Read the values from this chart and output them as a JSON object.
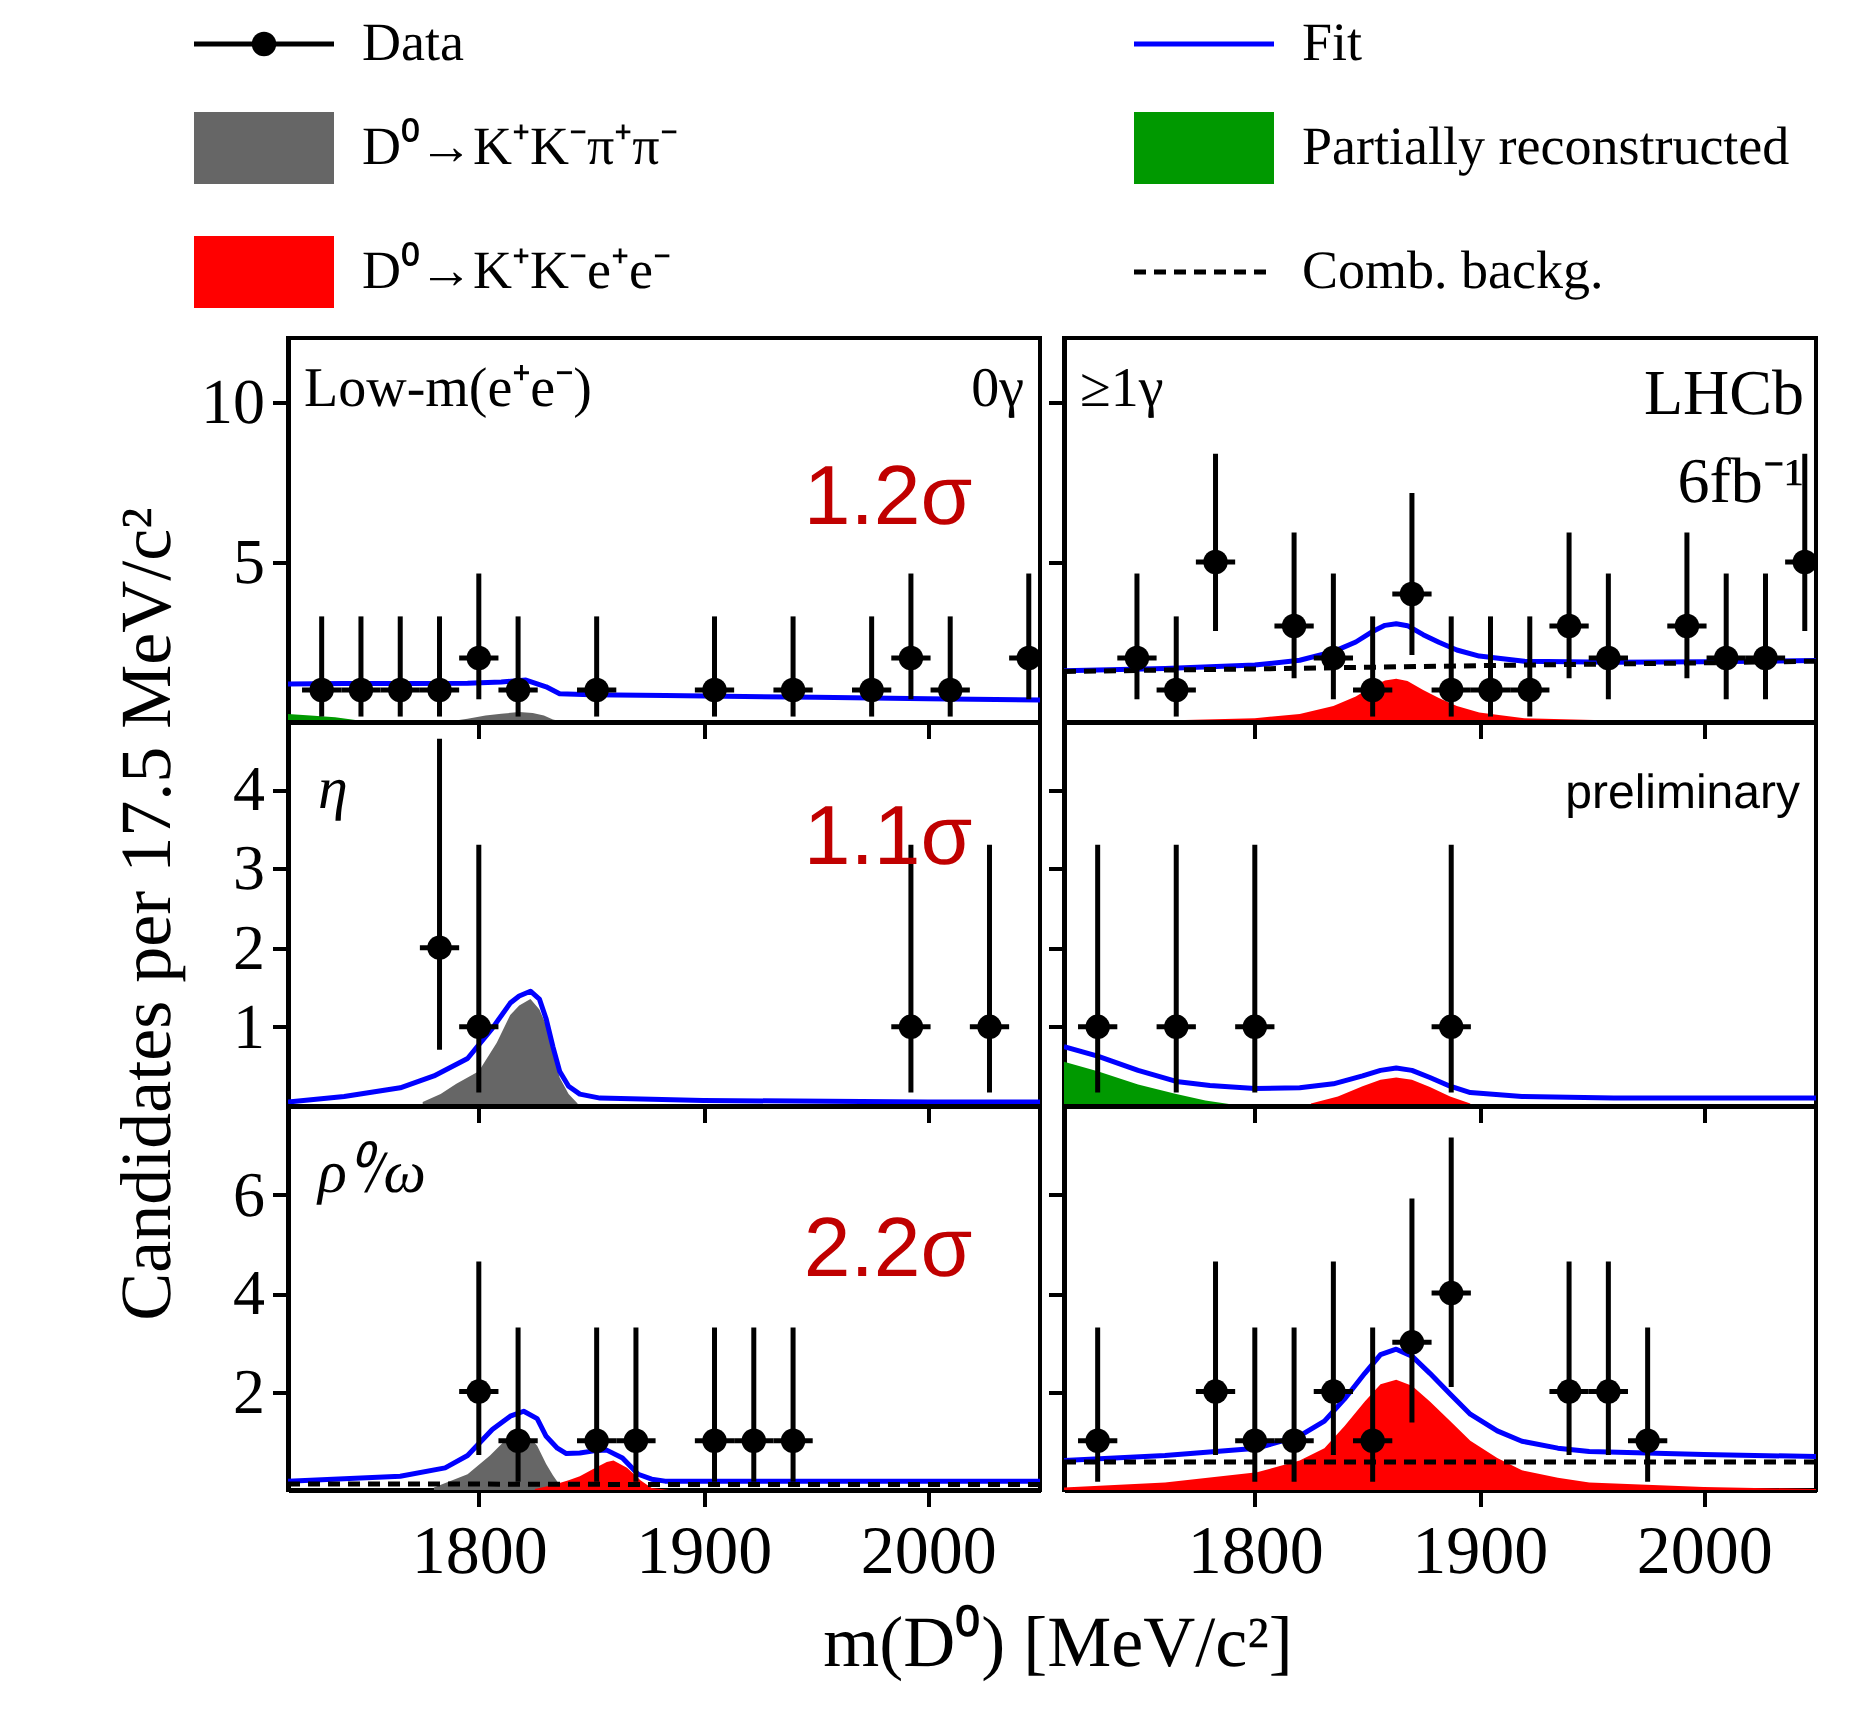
{
  "chart_data": [
    {
      "type": "scatter",
      "legend": "top",
      "xlim": [
        1715,
        2050
      ],
      "ylim": [
        0,
        12
      ],
      "xticks": [
        1800,
        1900,
        2000
      ],
      "yticks": [
        5,
        10
      ],
      "tick_labels": "y",
      "annotations": [
        "Low-m(e⁺e⁻)",
        "0γ",
        "1.2σ"
      ],
      "series": [
        {
          "name": "Data",
          "type": "scatter",
          "marker": "circle",
          "color": "#000000",
          "x": [
            1730,
            1747.5,
            1765,
            1782.5,
            1800,
            1817.5,
            1852.5,
            1905,
            1940,
            1975,
            1992.5,
            2010,
            2045
          ],
          "values": [
            1,
            1,
            1,
            1,
            2,
            1,
            1,
            1,
            1,
            1,
            2,
            1,
            2
          ],
          "errors": [
            [
              0.17,
              3.3
            ],
            [
              0.17,
              3.3
            ],
            [
              0.17,
              3.3
            ],
            [
              0.17,
              3.3
            ],
            [
              0.71,
              4.64
            ],
            [
              0.17,
              3.3
            ],
            [
              0.17,
              3.3
            ],
            [
              0.17,
              3.3
            ],
            [
              0.17,
              3.3
            ],
            [
              0.17,
              3.3
            ],
            [
              0.71,
              4.64
            ],
            [
              0.17,
              3.3
            ],
            [
              0.71,
              4.64
            ]
          ],
          "xerrors": [
            8.75,
            8.75,
            8.75,
            8.75,
            8.75,
            8.75,
            8.75,
            8.75,
            8.75,
            8.75,
            8.75,
            8.75,
            8.75
          ]
        },
        {
          "name": "Fit",
          "type": "line",
          "color": "#0000ff",
          "x": [
            1715,
            1740,
            1770,
            1795,
            1810,
            1821,
            1830,
            1836,
            1850,
            1883,
            1950,
            2000,
            2050
          ],
          "values": [
            1.19,
            1.2,
            1.2,
            1.21,
            1.25,
            1.31,
            1.1,
            0.88,
            0.85,
            0.83,
            0.77,
            0.73,
            0.69
          ]
        },
        {
          "name": "D⁰→K⁺K⁻π⁺π⁻",
          "type": "area",
          "color": "#666666",
          "x": [
            1785,
            1795,
            1803,
            1810,
            1818,
            1824,
            1829,
            1833,
            1838
          ],
          "values": [
            0,
            0.1,
            0.2,
            0.26,
            0.31,
            0.28,
            0.2,
            0.08,
            0
          ]
        },
        {
          "name": "Partially reconstructed",
          "type": "area",
          "color": "#009900",
          "x": [
            1715,
            1725,
            1736,
            1745,
            1752
          ],
          "values": [
            0.25,
            0.2,
            0.15,
            0.06,
            0
          ]
        }
      ]
    },
    {
      "type": "scatter",
      "legend": "top",
      "xlim": [
        1715,
        2050
      ],
      "ylim": [
        0,
        12
      ],
      "xticks": [
        1800,
        1900,
        2000
      ],
      "yticks": [
        5,
        10
      ],
      "tick_labels": false,
      "annotations": [
        "≥1γ",
        "LHCb",
        "6fb⁻¹"
      ],
      "series": [
        {
          "name": "Data",
          "type": "scatter",
          "marker": "circle",
          "color": "#000000",
          "x": [
            1747.5,
            1765,
            1782.5,
            1817.5,
            1835,
            1852.5,
            1870,
            1887.5,
            1905,
            1922.5,
            1940,
            1957.5,
            1992.5,
            2010,
            2027.5,
            2045
          ],
          "values": [
            2,
            1,
            5,
            3,
            2,
            1,
            4,
            1,
            1,
            1,
            3,
            2,
            3,
            2,
            2,
            5
          ],
          "errors": [
            [
              0.71,
              4.64
            ],
            [
              0.17,
              3.3
            ],
            [
              2.84,
              8.38
            ],
            [
              1.37,
              5.92
            ],
            [
              0.71,
              4.64
            ],
            [
              0.17,
              3.3
            ],
            [
              2.09,
              7.16
            ],
            [
              0.17,
              3.3
            ],
            [
              0.17,
              3.3
            ],
            [
              0.17,
              3.3
            ],
            [
              1.37,
              5.92
            ],
            [
              0.71,
              4.64
            ],
            [
              1.37,
              5.92
            ],
            [
              0.71,
              4.64
            ],
            [
              0.71,
              4.64
            ],
            [
              2.84,
              8.38
            ]
          ],
          "xerrors": [
            8.75,
            8.75,
            8.75,
            8.75,
            8.75,
            8.75,
            8.75,
            8.75,
            8.75,
            8.75,
            8.75,
            8.75,
            8.75,
            8.75,
            8.75,
            8.75
          ]
        },
        {
          "name": "Fit",
          "type": "line",
          "color": "#0000ff",
          "x": [
            1715,
            1760,
            1800,
            1820,
            1835,
            1845,
            1852,
            1858,
            1863,
            1868,
            1875,
            1882,
            1890,
            1900,
            1920,
            1960,
            2000,
            2050
          ],
          "values": [
            1.6,
            1.67,
            1.78,
            1.93,
            2.2,
            2.5,
            2.81,
            3.02,
            3.07,
            3.01,
            2.73,
            2.49,
            2.25,
            2.06,
            1.9,
            1.87,
            1.88,
            1.92
          ]
        },
        {
          "name": "D⁰→K⁺K⁻e⁺e⁻",
          "type": "area",
          "color": "#ff0000",
          "x": [
            1715,
            1760,
            1800,
            1820,
            1835,
            1845,
            1852,
            1858,
            1863,
            1868,
            1875,
            1882,
            1890,
            1900,
            1920,
            1960,
            2000,
            2050
          ],
          "values": [
            0.02,
            0.05,
            0.12,
            0.25,
            0.5,
            0.8,
            1.1,
            1.3,
            1.35,
            1.28,
            1.0,
            0.75,
            0.5,
            0.3,
            0.12,
            0.05,
            0.03,
            0.02
          ]
        },
        {
          "name": "Comb. backg.",
          "type": "line",
          "line_style": "dashed",
          "color": "#000000",
          "x": [
            1715,
            1800,
            1900,
            2000,
            2050
          ],
          "values": [
            1.58,
            1.66,
            1.76,
            1.85,
            1.9
          ]
        }
      ]
    },
    {
      "type": "scatter",
      "legend": "top",
      "xlim": [
        1715,
        2050
      ],
      "ylim": [
        0,
        4.85
      ],
      "xticks": [
        1800,
        1900,
        2000
      ],
      "yticks": [
        1,
        2,
        3,
        4
      ],
      "tick_labels": "y",
      "ylabel": "Candidates per 17.5 MeV/c²",
      "annotations": [
        "η",
        "1.1σ"
      ],
      "series": [
        {
          "name": "Data",
          "type": "scatter",
          "marker": "circle",
          "color": "#000000",
          "x": [
            1782.5,
            1800,
            1992.5,
            2027.5
          ],
          "values": [
            2,
            1,
            1,
            1
          ],
          "errors": [
            [
              0.71,
              4.64
            ],
            [
              0.17,
              3.3
            ],
            [
              0.17,
              3.3
            ],
            [
              0.17,
              3.3
            ]
          ],
          "xerrors": [
            8.75,
            8.75,
            8.75,
            8.75
          ]
        },
        {
          "name": "Fit",
          "type": "line",
          "color": "#0000ff",
          "x": [
            1715,
            1740,
            1765,
            1780,
            1795,
            1806,
            1814,
            1818,
            1823,
            1827,
            1830,
            1833,
            1836,
            1840,
            1845,
            1854,
            1900,
            2000,
            2050
          ],
          "values": [
            0.05,
            0.12,
            0.23,
            0.38,
            0.6,
            0.98,
            1.3,
            1.39,
            1.45,
            1.35,
            1.1,
            0.75,
            0.44,
            0.25,
            0.15,
            0.1,
            0.07,
            0.05,
            0.05
          ]
        },
        {
          "name": "D⁰→K⁺K⁻π⁺π⁻",
          "type": "area",
          "color": "#666666",
          "x": [
            1775,
            1783,
            1790,
            1800,
            1808,
            1814,
            1818,
            1823,
            1827,
            1830,
            1833,
            1836,
            1840,
            1844
          ],
          "values": [
            0.05,
            0.15,
            0.28,
            0.44,
            0.8,
            1.15,
            1.27,
            1.35,
            1.22,
            1.02,
            0.7,
            0.36,
            0.15,
            0.03
          ]
        }
      ]
    },
    {
      "type": "scatter",
      "legend": "top",
      "xlim": [
        1715,
        2050
      ],
      "ylim": [
        0,
        4.85
      ],
      "xticks": [
        1800,
        1900,
        2000
      ],
      "yticks": [
        1,
        2,
        3,
        4
      ],
      "tick_labels": false,
      "annotations": [
        "preliminary"
      ],
      "series": [
        {
          "name": "Data",
          "type": "scatter",
          "marker": "circle",
          "color": "#000000",
          "x": [
            1730,
            1765,
            1800,
            1887.5
          ],
          "values": [
            1,
            1,
            1,
            1
          ],
          "errors": [
            [
              0.17,
              3.3
            ],
            [
              0.17,
              3.3
            ],
            [
              0.17,
              3.3
            ],
            [
              0.17,
              3.3
            ]
          ],
          "xerrors": [
            8.75,
            8.75,
            8.75,
            8.75
          ]
        },
        {
          "name": "Fit",
          "type": "line",
          "color": "#0000ff",
          "x": [
            1715,
            1730,
            1748,
            1765,
            1780,
            1800,
            1820,
            1835,
            1848,
            1856,
            1863,
            1870,
            1878,
            1887,
            1896,
            1919,
            1960,
            2050
          ],
          "values": [
            0.75,
            0.63,
            0.45,
            0.31,
            0.26,
            0.22,
            0.23,
            0.28,
            0.38,
            0.45,
            0.48,
            0.45,
            0.36,
            0.25,
            0.17,
            0.12,
            0.1,
            0.1
          ]
        },
        {
          "name": "Partially reconstructed",
          "type": "area",
          "color": "#009900",
          "x": [
            1715,
            1730,
            1748,
            1765,
            1778,
            1790
          ],
          "values": [
            0.56,
            0.44,
            0.27,
            0.15,
            0.07,
            0.02
          ]
        },
        {
          "name": "D⁰→K⁺K⁻e⁺e⁻",
          "type": "area",
          "color": "#ff0000",
          "x": [
            1825,
            1837,
            1848,
            1856,
            1863,
            1870,
            1878,
            1887,
            1896
          ],
          "values": [
            0.03,
            0.12,
            0.25,
            0.33,
            0.36,
            0.33,
            0.24,
            0.12,
            0.03
          ]
        }
      ]
    },
    {
      "type": "scatter",
      "legend": "top",
      "xlim": [
        1715,
        2050
      ],
      "ylim": [
        0,
        7.8
      ],
      "xticks": [
        1800,
        1900,
        2000
      ],
      "yticks": [
        2,
        4,
        6
      ],
      "xlabel": "m(D⁰) [MeV/c²]",
      "annotations": [
        "ρ⁰/ω",
        "2.2σ"
      ],
      "series": [
        {
          "name": "Data",
          "type": "scatter",
          "marker": "circle",
          "color": "#000000",
          "x": [
            1800,
            1817.5,
            1852.5,
            1870,
            1905,
            1922.5,
            1940
          ],
          "values": [
            2,
            1,
            1,
            1,
            1,
            1,
            1
          ],
          "errors": [
            [
              0.71,
              4.64
            ],
            [
              0.17,
              3.3
            ],
            [
              0.17,
              3.3
            ],
            [
              0.17,
              3.3
            ],
            [
              0.17,
              3.3
            ],
            [
              0.17,
              3.3
            ],
            [
              0.17,
              3.3
            ]
          ],
          "xerrors": [
            8.75,
            8.75,
            8.75,
            8.75,
            8.75,
            8.75,
            8.75
          ]
        },
        {
          "name": "Fit",
          "type": "line",
          "color": "#0000ff",
          "x": [
            1715,
            1765,
            1785,
            1795,
            1806,
            1814,
            1820,
            1826,
            1830,
            1835,
            1839,
            1845,
            1852,
            1857,
            1864,
            1871,
            1877,
            1883,
            1950,
            2050
          ],
          "values": [
            0.18,
            0.28,
            0.45,
            0.7,
            1.23,
            1.5,
            1.6,
            1.45,
            1.09,
            0.85,
            0.74,
            0.75,
            0.8,
            0.81,
            0.65,
            0.32,
            0.22,
            0.18,
            0.18,
            0.18
          ]
        },
        {
          "name": "D⁰→K⁺K⁻π⁺π⁻",
          "type": "area",
          "color": "#666666",
          "x": [
            1780,
            1795,
            1805,
            1812,
            1816,
            1821,
            1826,
            1830,
            1833,
            1836,
            1840
          ],
          "values": [
            0.05,
            0.32,
            0.7,
            1.02,
            1.12,
            1.16,
            0.9,
            0.53,
            0.3,
            0.1,
            0
          ]
        },
        {
          "name": "D⁰→K⁺K⁻e⁺e⁻",
          "type": "area",
          "color": "#ff0000",
          "x": [
            1825,
            1833,
            1840,
            1845,
            1852,
            1857,
            1860,
            1866,
            1872,
            1877,
            1885
          ],
          "values": [
            0.02,
            0.1,
            0.2,
            0.28,
            0.45,
            0.57,
            0.6,
            0.45,
            0.2,
            0.04,
            0
          ]
        },
        {
          "name": "Comb. backg.",
          "type": "line",
          "line_style": "dashed",
          "color": "#000000",
          "x": [
            1715,
            1800,
            1900,
            2050
          ],
          "values": [
            0.12,
            0.12,
            0.11,
            0.11
          ]
        }
      ]
    },
    {
      "type": "scatter",
      "legend": "top",
      "xlim": [
        1715,
        2050
      ],
      "ylim": [
        0,
        7.8
      ],
      "xticks": [
        1800,
        1900,
        2000
      ],
      "yticks": [
        2,
        4,
        6
      ],
      "tick_labels": "x",
      "series": [
        {
          "name": "Data",
          "type": "scatter",
          "marker": "circle",
          "color": "#000000",
          "x": [
            1730,
            1782.5,
            1800,
            1817.5,
            1835,
            1852.5,
            1870,
            1887.5,
            1940,
            1957.5,
            1975
          ],
          "values": [
            1,
            2,
            1,
            1,
            2,
            1,
            3,
            4,
            2,
            2,
            1
          ],
          "errors": [
            [
              0.17,
              3.3
            ],
            [
              0.71,
              4.64
            ],
            [
              0.17,
              3.3
            ],
            [
              0.17,
              3.3
            ],
            [
              0.71,
              4.64
            ],
            [
              0.17,
              3.3
            ],
            [
              1.37,
              5.92
            ],
            [
              2.09,
              7.16
            ],
            [
              0.71,
              4.64
            ],
            [
              0.71,
              4.64
            ],
            [
              0.17,
              3.3
            ]
          ],
          "xerrors": [
            8.75,
            8.75,
            8.75,
            8.75,
            8.75,
            8.75,
            8.75,
            8.75,
            8.75,
            8.75,
            8.75
          ]
        },
        {
          "name": "Fit",
          "type": "line",
          "color": "#0000ff",
          "x": [
            1715,
            1760,
            1801,
            1820,
            1831,
            1840,
            1849,
            1856,
            1863,
            1870,
            1878,
            1887,
            1896,
            1908,
            1919,
            1935,
            1949,
            2000,
            2050
          ],
          "values": [
            0.6,
            0.7,
            0.85,
            1.1,
            1.4,
            1.85,
            2.37,
            2.75,
            2.86,
            2.72,
            2.37,
            1.95,
            1.54,
            1.2,
            0.99,
            0.85,
            0.78,
            0.72,
            0.68
          ]
        },
        {
          "name": "D⁰→K⁺K⁻e⁺e⁻",
          "type": "area",
          "color": "#ff0000",
          "x": [
            1715,
            1760,
            1801,
            1820,
            1831,
            1840,
            1849,
            1856,
            1863,
            1870,
            1878,
            1887,
            1896,
            1908,
            1919,
            1935,
            1949,
            2000,
            2050
          ],
          "values": [
            0.05,
            0.15,
            0.36,
            0.6,
            0.85,
            1.3,
            1.8,
            2.15,
            2.24,
            2.12,
            1.8,
            1.4,
            1.0,
            0.65,
            0.4,
            0.25,
            0.15,
            0.06,
            0.02
          ]
        },
        {
          "name": "Comb. backg.",
          "type": "line",
          "line_style": "dashed",
          "color": "#000000",
          "x": [
            1715,
            2050
          ],
          "values": [
            0.57,
            0.57
          ]
        }
      ]
    }
  ]
}
